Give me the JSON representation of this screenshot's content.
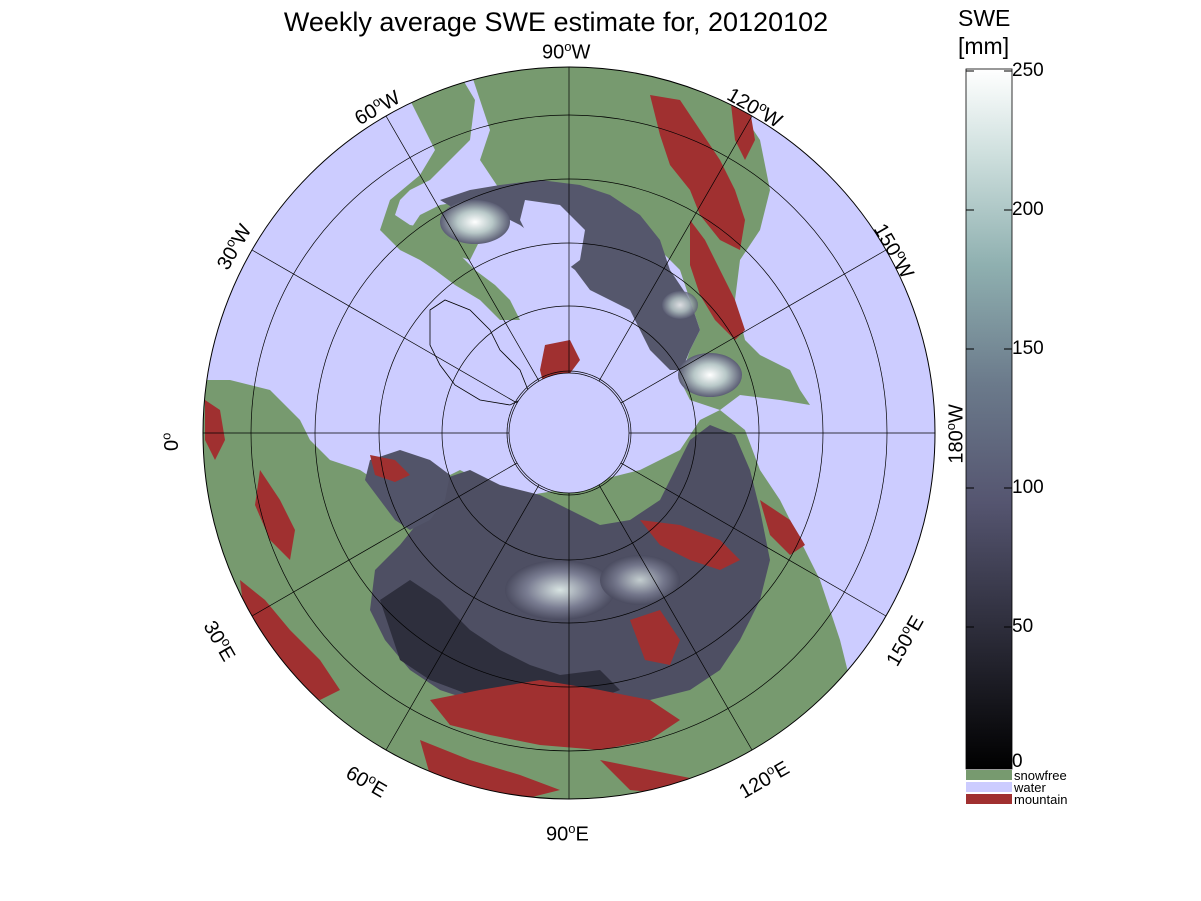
{
  "figure": {
    "title": "Weekly average SWE estimate for, 20120102",
    "lon_labels": [
      {
        "value": "90",
        "suffix": "W"
      },
      {
        "value": "120",
        "suffix": "W"
      },
      {
        "value": "150",
        "suffix": "W"
      },
      {
        "value": "180",
        "suffix": "W"
      },
      {
        "value": "150",
        "suffix": "E"
      },
      {
        "value": "120",
        "suffix": "E"
      },
      {
        "value": "90",
        "suffix": "E"
      },
      {
        "value": "60",
        "suffix": "E"
      },
      {
        "value": "30",
        "suffix": "E"
      },
      {
        "value": "0",
        "suffix": ""
      },
      {
        "value": "30",
        "suffix": "W"
      },
      {
        "value": "60",
        "suffix": "W"
      }
    ],
    "degree_symbol": "o"
  },
  "colorbar": {
    "title_line1": "SWE",
    "title_line2": "[mm]",
    "min": 0,
    "max": 250,
    "ticks": [
      "0",
      "50",
      "100",
      "150",
      "200",
      "250"
    ],
    "categories": [
      {
        "label": "snowfree",
        "color": "#779a6f"
      },
      {
        "label": "water",
        "color": "#ccccff"
      },
      {
        "label": "mountain",
        "color": "#a03030"
      }
    ]
  },
  "colors": {
    "water": "#ccccff",
    "land_snowfree": "#779a6f",
    "mountain": "#a03030",
    "swe_low": "#0a0a10",
    "swe_mid": "#5a5a78",
    "swe_high": "#ffffff"
  }
}
